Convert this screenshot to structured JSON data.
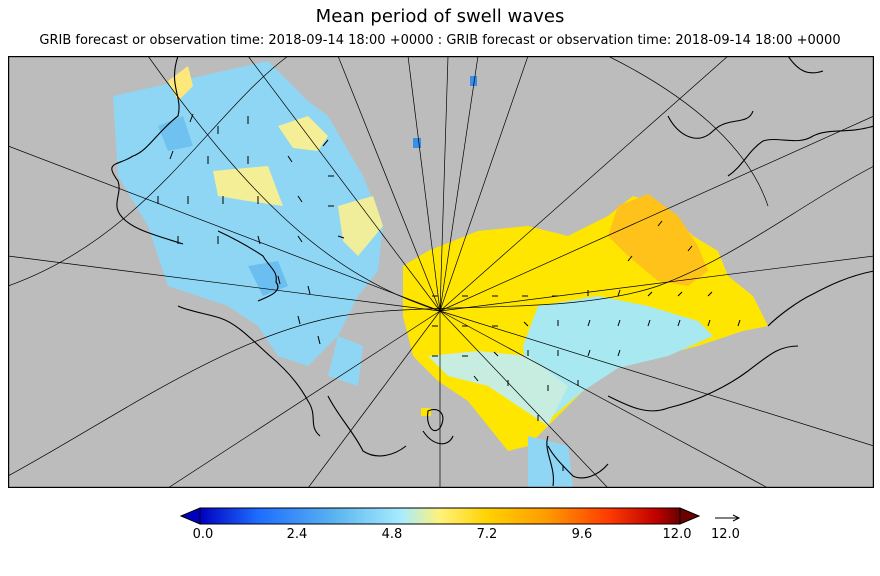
{
  "title": "Mean period of swell waves",
  "subtitle": "GRIB forecast or observation time: 2018-09-14 18:00 +0000 : GRIB forecast or observation time: 2018-09-14 18:00 +0000",
  "colorbar": {
    "ticks": [
      "0.0",
      "2.4",
      "4.8",
      "7.2",
      "9.6",
      "12.0"
    ],
    "min": 0.0,
    "max": 12.0,
    "colors": [
      "#0000c0",
      "#1e6cff",
      "#5ab4f0",
      "#a8ecff",
      "#fff27a",
      "#ffd200",
      "#ff9c00",
      "#ff3c00",
      "#c00000",
      "#6a0000"
    ]
  },
  "reference_vector": {
    "label": "12.0"
  },
  "colors": {
    "land": "#bcbcbc",
    "coast": "#000000",
    "grid": "#000000"
  }
}
